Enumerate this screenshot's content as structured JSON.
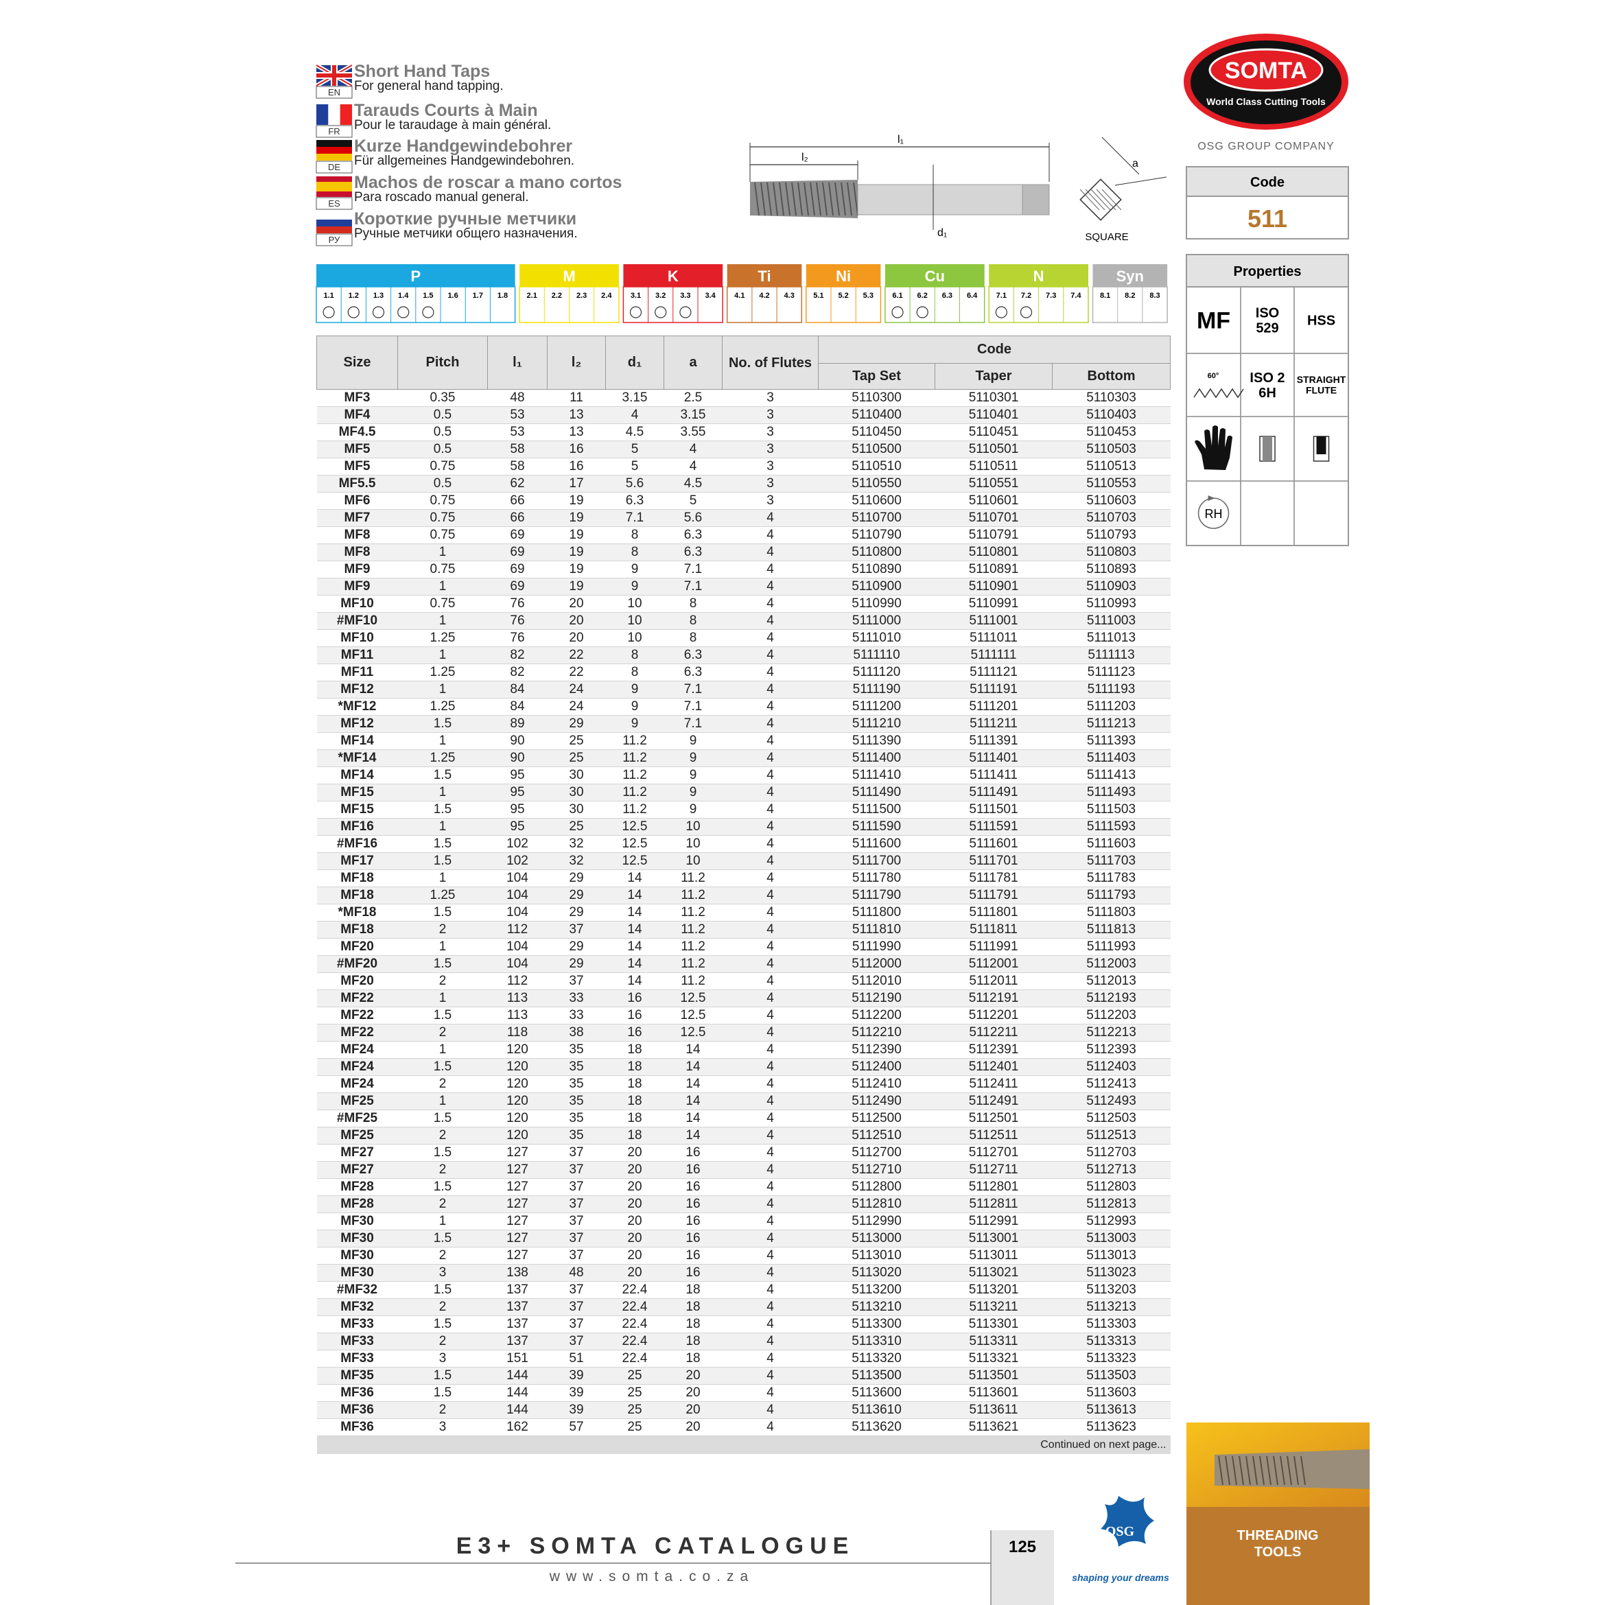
{
  "header": {
    "languages": [
      {
        "code": "EN",
        "title": "Short Hand Taps",
        "subtitle": "For general hand tapping."
      },
      {
        "code": "FR",
        "title": "Tarauds Courts à Main",
        "subtitle": "Pour le taraudage à main général."
      },
      {
        "code": "DE",
        "title": "Kurze Handgewindebohrer",
        "subtitle": "Für allgemeines Handgewindebohren."
      },
      {
        "code": "ES",
        "title": "Machos de roscar a mano cortos",
        "subtitle": "Para roscado manual general."
      },
      {
        "code": "РУ",
        "title": "Короткие ручные метчики",
        "subtitle": "Ручные метчики общего назначения."
      }
    ]
  },
  "logo": {
    "brand": "SOMTA",
    "tagline": "World Class Cutting Tools",
    "group": "OSG GROUP COMPANY"
  },
  "diagram": {
    "l1": "l₁",
    "l2": "l₂",
    "d1": "d₁",
    "a": "a",
    "square": "SQUARE"
  },
  "code_box": {
    "label": "Code",
    "value": "511"
  },
  "properties": {
    "title": "Properties",
    "mf": "MF",
    "standard": [
      "ISO",
      "529"
    ],
    "material": "HSS",
    "angle": "60°",
    "tolerance": [
      "ISO 2",
      "6H"
    ],
    "flute": [
      "STRAIGHT",
      "FLUTE"
    ],
    "hand": "RH"
  },
  "materials": [
    {
      "name": "P",
      "color": "#1ba8e0",
      "codes": [
        "1.1",
        "1.2",
        "1.3",
        "1.4",
        "1.5",
        "1.6",
        "1.7",
        "1.8"
      ],
      "suitable": [
        true,
        true,
        true,
        true,
        true,
        false,
        false,
        false
      ]
    },
    {
      "name": "M",
      "color": "#f2e100",
      "codes": [
        "2.1",
        "2.2",
        "2.3",
        "2.4"
      ],
      "suitable": [
        false,
        false,
        false,
        false
      ]
    },
    {
      "name": "K",
      "color": "#e3202a",
      "codes": [
        "3.1",
        "3.2",
        "3.3",
        "3.4"
      ],
      "suitable": [
        true,
        true,
        true,
        false
      ]
    },
    {
      "name": "Ti",
      "color": "#c9722c",
      "codes": [
        "4.1",
        "4.2",
        "4.3"
      ],
      "suitable": [
        false,
        false,
        false
      ]
    },
    {
      "name": "Ni",
      "color": "#f39a1e",
      "codes": [
        "5.1",
        "5.2",
        "5.3"
      ],
      "suitable": [
        false,
        false,
        false
      ]
    },
    {
      "name": "Cu",
      "color": "#8dc63f",
      "codes": [
        "6.1",
        "6.2",
        "6.3",
        "6.4"
      ],
      "suitable": [
        true,
        true,
        false,
        false
      ]
    },
    {
      "name": "N",
      "color": "#b8d432",
      "codes": [
        "7.1",
        "7.2",
        "7.3",
        "7.4"
      ],
      "suitable": [
        true,
        true,
        false,
        false
      ]
    },
    {
      "name": "Syn",
      "color": "#b3b3b3",
      "codes": [
        "8.1",
        "8.2",
        "8.3"
      ],
      "suitable": [
        false,
        false,
        false
      ]
    }
  ],
  "table": {
    "columns": [
      "Size",
      "Pitch",
      "l₁",
      "l₂",
      "d₁",
      "a",
      "No. of Flutes"
    ],
    "code_header": "Code",
    "code_columns": [
      "Tap Set",
      "Taper",
      "Bottom"
    ],
    "rows": [
      [
        "MF3",
        "0.35",
        "48",
        "11",
        "3.15",
        "2.5",
        "3",
        "5110300",
        "5110301",
        "5110303"
      ],
      [
        "MF4",
        "0.5",
        "53",
        "13",
        "4",
        "3.15",
        "3",
        "5110400",
        "5110401",
        "5110403"
      ],
      [
        "MF4.5",
        "0.5",
        "53",
        "13",
        "4.5",
        "3.55",
        "3",
        "5110450",
        "5110451",
        "5110453"
      ],
      [
        "MF5",
        "0.5",
        "58",
        "16",
        "5",
        "4",
        "3",
        "5110500",
        "5110501",
        "5110503"
      ],
      [
        "MF5",
        "0.75",
        "58",
        "16",
        "5",
        "4",
        "3",
        "5110510",
        "5110511",
        "5110513"
      ],
      [
        "MF5.5",
        "0.5",
        "62",
        "17",
        "5.6",
        "4.5",
        "3",
        "5110550",
        "5110551",
        "5110553"
      ],
      [
        "MF6",
        "0.75",
        "66",
        "19",
        "6.3",
        "5",
        "3",
        "5110600",
        "5110601",
        "5110603"
      ],
      [
        "MF7",
        "0.75",
        "66",
        "19",
        "7.1",
        "5.6",
        "4",
        "5110700",
        "5110701",
        "5110703"
      ],
      [
        "MF8",
        "0.75",
        "69",
        "19",
        "8",
        "6.3",
        "4",
        "5110790",
        "5110791",
        "5110793"
      ],
      [
        "MF8",
        "1",
        "69",
        "19",
        "8",
        "6.3",
        "4",
        "5110800",
        "5110801",
        "5110803"
      ],
      [
        "MF9",
        "0.75",
        "69",
        "19",
        "9",
        "7.1",
        "4",
        "5110890",
        "5110891",
        "5110893"
      ],
      [
        "MF9",
        "1",
        "69",
        "19",
        "9",
        "7.1",
        "4",
        "5110900",
        "5110901",
        "5110903"
      ],
      [
        "MF10",
        "0.75",
        "76",
        "20",
        "10",
        "8",
        "4",
        "5110990",
        "5110991",
        "5110993"
      ],
      [
        "#MF10",
        "1",
        "76",
        "20",
        "10",
        "8",
        "4",
        "5111000",
        "5111001",
        "5111003"
      ],
      [
        "MF10",
        "1.25",
        "76",
        "20",
        "10",
        "8",
        "4",
        "5111010",
        "5111011",
        "5111013"
      ],
      [
        "MF11",
        "1",
        "82",
        "22",
        "8",
        "6.3",
        "4",
        "5111110",
        "5111111",
        "5111113"
      ],
      [
        "MF11",
        "1.25",
        "82",
        "22",
        "8",
        "6.3",
        "4",
        "5111120",
        "5111121",
        "5111123"
      ],
      [
        "MF12",
        "1",
        "84",
        "24",
        "9",
        "7.1",
        "4",
        "5111190",
        "5111191",
        "5111193"
      ],
      [
        "*MF12",
        "1.25",
        "84",
        "24",
        "9",
        "7.1",
        "4",
        "5111200",
        "5111201",
        "5111203"
      ],
      [
        "MF12",
        "1.5",
        "89",
        "29",
        "9",
        "7.1",
        "4",
        "5111210",
        "5111211",
        "5111213"
      ],
      [
        "MF14",
        "1",
        "90",
        "25",
        "11.2",
        "9",
        "4",
        "5111390",
        "5111391",
        "5111393"
      ],
      [
        "*MF14",
        "1.25",
        "90",
        "25",
        "11.2",
        "9",
        "4",
        "5111400",
        "5111401",
        "5111403"
      ],
      [
        "MF14",
        "1.5",
        "95",
        "30",
        "11.2",
        "9",
        "4",
        "5111410",
        "5111411",
        "5111413"
      ],
      [
        "MF15",
        "1",
        "95",
        "30",
        "11.2",
        "9",
        "4",
        "5111490",
        "5111491",
        "5111493"
      ],
      [
        "MF15",
        "1.5",
        "95",
        "30",
        "11.2",
        "9",
        "4",
        "5111500",
        "5111501",
        "5111503"
      ],
      [
        "MF16",
        "1",
        "95",
        "25",
        "12.5",
        "10",
        "4",
        "5111590",
        "5111591",
        "5111593"
      ],
      [
        "#MF16",
        "1.5",
        "102",
        "32",
        "12.5",
        "10",
        "4",
        "5111600",
        "5111601",
        "5111603"
      ],
      [
        "MF17",
        "1.5",
        "102",
        "32",
        "12.5",
        "10",
        "4",
        "5111700",
        "5111701",
        "5111703"
      ],
      [
        "MF18",
        "1",
        "104",
        "29",
        "14",
        "11.2",
        "4",
        "5111780",
        "5111781",
        "5111783"
      ],
      [
        "MF18",
        "1.25",
        "104",
        "29",
        "14",
        "11.2",
        "4",
        "5111790",
        "5111791",
        "5111793"
      ],
      [
        "*MF18",
        "1.5",
        "104",
        "29",
        "14",
        "11.2",
        "4",
        "5111800",
        "5111801",
        "5111803"
      ],
      [
        "MF18",
        "2",
        "112",
        "37",
        "14",
        "11.2",
        "4",
        "5111810",
        "5111811",
        "5111813"
      ],
      [
        "MF20",
        "1",
        "104",
        "29",
        "14",
        "11.2",
        "4",
        "5111990",
        "5111991",
        "5111993"
      ],
      [
        "#MF20",
        "1.5",
        "104",
        "29",
        "14",
        "11.2",
        "4",
        "5112000",
        "5112001",
        "5112003"
      ],
      [
        "MF20",
        "2",
        "112",
        "37",
        "14",
        "11.2",
        "4",
        "5112010",
        "5112011",
        "5112013"
      ],
      [
        "MF22",
        "1",
        "113",
        "33",
        "16",
        "12.5",
        "4",
        "5112190",
        "5112191",
        "5112193"
      ],
      [
        "MF22",
        "1.5",
        "113",
        "33",
        "16",
        "12.5",
        "4",
        "5112200",
        "5112201",
        "5112203"
      ],
      [
        "MF22",
        "2",
        "118",
        "38",
        "16",
        "12.5",
        "4",
        "5112210",
        "5112211",
        "5112213"
      ],
      [
        "MF24",
        "1",
        "120",
        "35",
        "18",
        "14",
        "4",
        "5112390",
        "5112391",
        "5112393"
      ],
      [
        "MF24",
        "1.5",
        "120",
        "35",
        "18",
        "14",
        "4",
        "5112400",
        "5112401",
        "5112403"
      ],
      [
        "MF24",
        "2",
        "120",
        "35",
        "18",
        "14",
        "4",
        "5112410",
        "5112411",
        "5112413"
      ],
      [
        "MF25",
        "1",
        "120",
        "35",
        "18",
        "14",
        "4",
        "5112490",
        "5112491",
        "5112493"
      ],
      [
        "#MF25",
        "1.5",
        "120",
        "35",
        "18",
        "14",
        "4",
        "5112500",
        "5112501",
        "5112503"
      ],
      [
        "MF25",
        "2",
        "120",
        "35",
        "18",
        "14",
        "4",
        "5112510",
        "5112511",
        "5112513"
      ],
      [
        "MF27",
        "1.5",
        "127",
        "37",
        "20",
        "16",
        "4",
        "5112700",
        "5112701",
        "5112703"
      ],
      [
        "MF27",
        "2",
        "127",
        "37",
        "20",
        "16",
        "4",
        "5112710",
        "5112711",
        "5112713"
      ],
      [
        "MF28",
        "1.5",
        "127",
        "37",
        "20",
        "16",
        "4",
        "5112800",
        "5112801",
        "5112803"
      ],
      [
        "MF28",
        "2",
        "127",
        "37",
        "20",
        "16",
        "4",
        "5112810",
        "5112811",
        "5112813"
      ],
      [
        "MF30",
        "1",
        "127",
        "37",
        "20",
        "16",
        "4",
        "5112990",
        "5112991",
        "5112993"
      ],
      [
        "MF30",
        "1.5",
        "127",
        "37",
        "20",
        "16",
        "4",
        "5113000",
        "5113001",
        "5113003"
      ],
      [
        "MF30",
        "2",
        "127",
        "37",
        "20",
        "16",
        "4",
        "5113010",
        "5113011",
        "5113013"
      ],
      [
        "MF30",
        "3",
        "138",
        "48",
        "20",
        "16",
        "4",
        "5113020",
        "5113021",
        "5113023"
      ],
      [
        "#MF32",
        "1.5",
        "137",
        "37",
        "22.4",
        "18",
        "4",
        "5113200",
        "5113201",
        "5113203"
      ],
      [
        "MF32",
        "2",
        "137",
        "37",
        "22.4",
        "18",
        "4",
        "5113210",
        "5113211",
        "5113213"
      ],
      [
        "MF33",
        "1.5",
        "137",
        "37",
        "22.4",
        "18",
        "4",
        "5113300",
        "5113301",
        "5113303"
      ],
      [
        "MF33",
        "2",
        "137",
        "37",
        "22.4",
        "18",
        "4",
        "5113310",
        "5113311",
        "5113313"
      ],
      [
        "MF33",
        "3",
        "151",
        "51",
        "22.4",
        "18",
        "4",
        "5113320",
        "5113321",
        "5113323"
      ],
      [
        "MF35",
        "1.5",
        "144",
        "39",
        "25",
        "20",
        "4",
        "5113500",
        "5113501",
        "5113503"
      ],
      [
        "MF36",
        "1.5",
        "144",
        "39",
        "25",
        "20",
        "4",
        "5113600",
        "5113601",
        "5113603"
      ],
      [
        "MF36",
        "2",
        "144",
        "39",
        "25",
        "20",
        "4",
        "5113610",
        "5113611",
        "5113613"
      ],
      [
        "MF36",
        "3",
        "162",
        "57",
        "25",
        "20",
        "4",
        "5113620",
        "5113621",
        "5113623"
      ]
    ],
    "note": "Continued on next page..."
  },
  "footer": {
    "catalogue": "E3+ SOMTA CATALOGUE",
    "website": "www.somta.co.za",
    "page": "125",
    "osg": "OSG",
    "slogan": "shaping your dreams",
    "section": "THREADING TOOLS"
  }
}
